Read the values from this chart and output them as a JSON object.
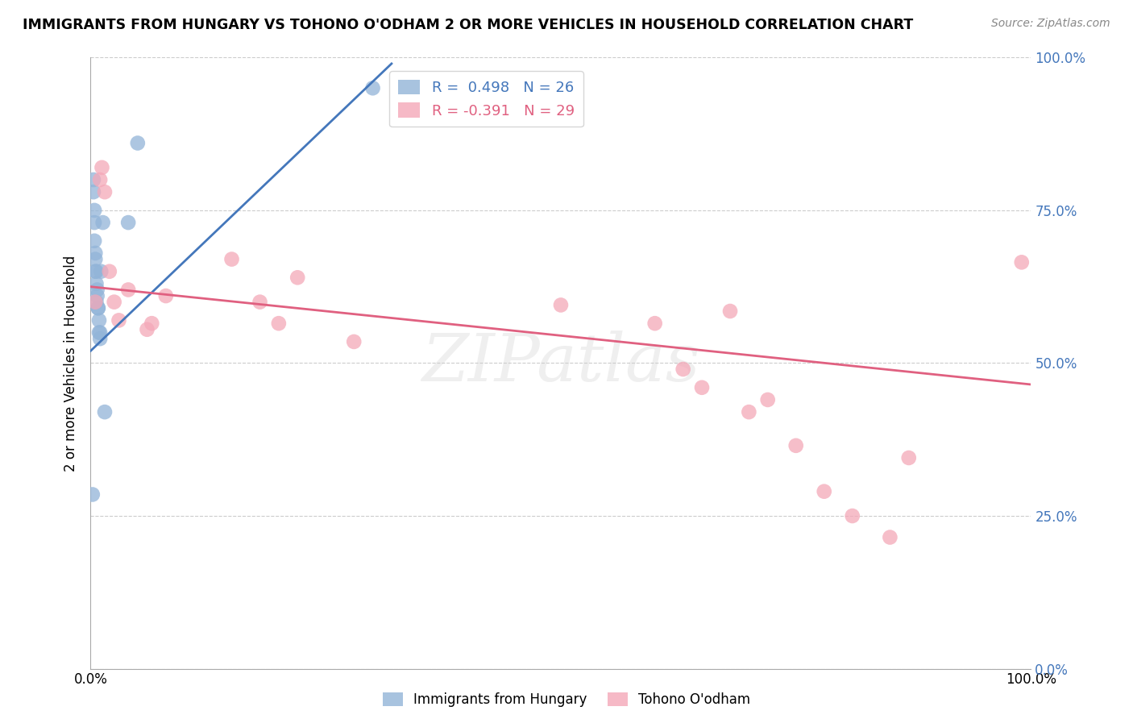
{
  "title": "IMMIGRANTS FROM HUNGARY VS TOHONO O'ODHAM 2 OR MORE VEHICLES IN HOUSEHOLD CORRELATION CHART",
  "source": "Source: ZipAtlas.com",
  "ylabel": "2 or more Vehicles in Household",
  "xlim": [
    0,
    1
  ],
  "ylim": [
    0,
    1
  ],
  "ytick_values": [
    0.0,
    0.25,
    0.5,
    0.75,
    1.0
  ],
  "ytick_labels": [
    "0.0%",
    "25.0%",
    "50.0%",
    "75.0%",
    "100.0%"
  ],
  "legend_R1": "R =  0.498",
  "legend_N1": "N = 26",
  "legend_R2": "R = -0.391",
  "legend_N2": "N = 29",
  "blue_color": "#92B4D8",
  "pink_color": "#F4A8B8",
  "blue_line_color": "#4477BB",
  "pink_line_color": "#E06080",
  "background_color": "#FFFFFF",
  "blue_scatter_x": [
    0.002,
    0.003,
    0.003,
    0.004,
    0.004,
    0.004,
    0.005,
    0.005,
    0.005,
    0.006,
    0.006,
    0.006,
    0.007,
    0.007,
    0.008,
    0.008,
    0.009,
    0.009,
    0.01,
    0.01,
    0.011,
    0.013,
    0.015,
    0.04,
    0.05,
    0.3
  ],
  "blue_scatter_y": [
    0.285,
    0.78,
    0.8,
    0.73,
    0.75,
    0.7,
    0.67,
    0.68,
    0.65,
    0.65,
    0.63,
    0.6,
    0.62,
    0.61,
    0.59,
    0.59,
    0.57,
    0.55,
    0.55,
    0.54,
    0.65,
    0.73,
    0.42,
    0.73,
    0.86,
    0.95
  ],
  "pink_scatter_x": [
    0.005,
    0.01,
    0.012,
    0.015,
    0.02,
    0.025,
    0.03,
    0.04,
    0.06,
    0.065,
    0.08,
    0.15,
    0.18,
    0.2,
    0.22,
    0.28,
    0.5,
    0.6,
    0.63,
    0.65,
    0.68,
    0.7,
    0.72,
    0.75,
    0.78,
    0.81,
    0.85,
    0.87,
    0.99
  ],
  "pink_scatter_y": [
    0.6,
    0.8,
    0.82,
    0.78,
    0.65,
    0.6,
    0.57,
    0.62,
    0.555,
    0.565,
    0.61,
    0.67,
    0.6,
    0.565,
    0.64,
    0.535,
    0.595,
    0.565,
    0.49,
    0.46,
    0.585,
    0.42,
    0.44,
    0.365,
    0.29,
    0.25,
    0.215,
    0.345,
    0.665
  ],
  "blue_line_x0": 0.0,
  "blue_line_y0": 0.52,
  "blue_line_x1": 0.32,
  "blue_line_y1": 0.99,
  "pink_line_x0": 0.0,
  "pink_line_y0": 0.625,
  "pink_line_x1": 1.0,
  "pink_line_y1": 0.465
}
